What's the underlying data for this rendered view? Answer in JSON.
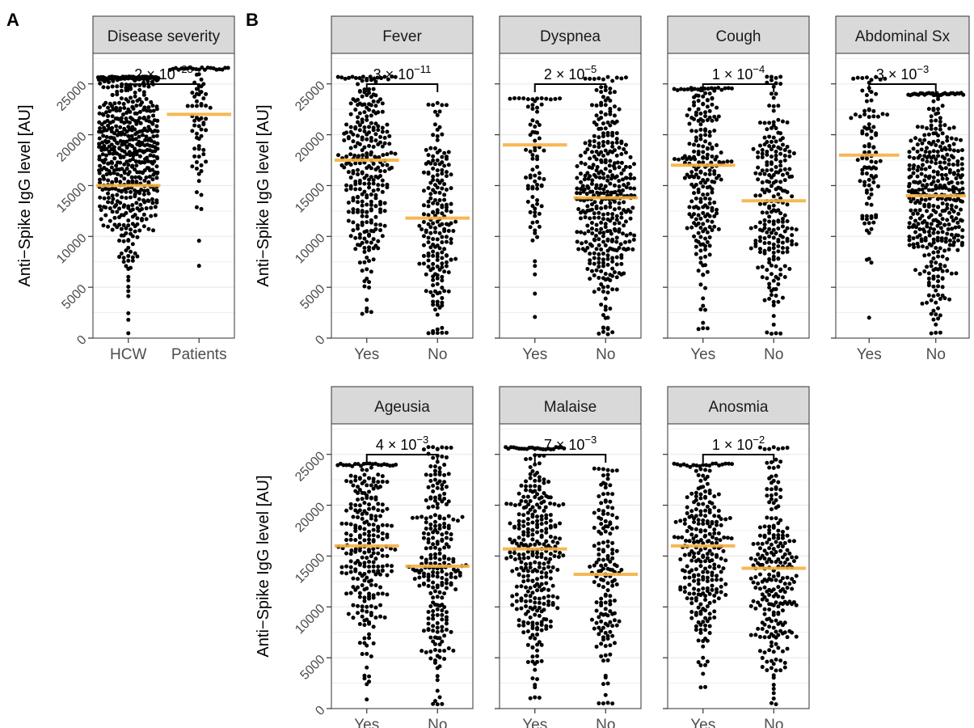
{
  "figure": {
    "panel_labels": [
      "A",
      "B"
    ],
    "y_axis_label": "Anti−Spike IgG level [AU]"
  },
  "colors": {
    "points": "#000000",
    "median_line": "#f5b041",
    "strip_fill": "#d9d9d9",
    "strip_border": "#333333",
    "gridline": "#ebebeb",
    "axis_text": "#4d4d4d",
    "significance_bar": "#000000"
  },
  "chart_data": [
    {
      "type": "scatter",
      "subtype": "beeswarm",
      "title": "Disease severity",
      "panel": "A",
      "categories": [
        "HCW",
        "Patients"
      ],
      "ylabel": "Anti−Spike IgG level [AU]",
      "y_ticks": [
        0,
        5000,
        10000,
        15000,
        20000,
        25000
      ],
      "ylim": [
        0,
        28000
      ],
      "grid": true,
      "p_value": {
        "mantissa": "2",
        "exponent": "−23"
      },
      "groups": [
        {
          "name": "HCW",
          "median": 15000,
          "n": 600,
          "min": 500,
          "max": 25600,
          "peak": 19000
        },
        {
          "name": "Patients",
          "median": 22000,
          "n": 80,
          "min": 7000,
          "max": 26500,
          "peak": 22000
        }
      ]
    },
    {
      "type": "scatter",
      "subtype": "beeswarm",
      "title": "Fever",
      "panel": "B",
      "categories": [
        "Yes",
        "No"
      ],
      "ylim": [
        0,
        28000
      ],
      "y_ticks": [
        0,
        5000,
        10000,
        15000,
        20000,
        25000
      ],
      "p_value": {
        "mantissa": "3",
        "exponent": "−11"
      },
      "groups": [
        {
          "name": "Yes",
          "median": 17500,
          "n": 300,
          "min": 2500,
          "max": 25600,
          "peak": 17000
        },
        {
          "name": "No",
          "median": 11800,
          "n": 200,
          "min": 500,
          "max": 23000,
          "peak": 11500
        }
      ]
    },
    {
      "type": "scatter",
      "subtype": "beeswarm",
      "title": "Dyspnea",
      "panel": "B",
      "categories": [
        "Yes",
        "No"
      ],
      "ylim": [
        0,
        28000
      ],
      "y_ticks": [
        0,
        5000,
        10000,
        15000,
        20000,
        25000
      ],
      "p_value": {
        "mantissa": "2",
        "exponent": "−5"
      },
      "groups": [
        {
          "name": "Yes",
          "median": 19000,
          "n": 80,
          "min": 2000,
          "max": 23500,
          "peak": 17500
        },
        {
          "name": "No",
          "median": 13800,
          "n": 400,
          "min": 500,
          "max": 25600,
          "peak": 14000
        }
      ]
    },
    {
      "type": "scatter",
      "subtype": "beeswarm",
      "title": "Cough",
      "panel": "B",
      "categories": [
        "Yes",
        "No"
      ],
      "ylim": [
        0,
        28000
      ],
      "y_ticks": [
        0,
        5000,
        10000,
        15000,
        20000,
        25000
      ],
      "p_value": {
        "mantissa": "1",
        "exponent": "−4"
      },
      "groups": [
        {
          "name": "Yes",
          "median": 17000,
          "n": 240,
          "min": 1000,
          "max": 24500,
          "peak": 16500
        },
        {
          "name": "No",
          "median": 13500,
          "n": 240,
          "min": 500,
          "max": 25600,
          "peak": 13500
        }
      ]
    },
    {
      "type": "scatter",
      "subtype": "beeswarm",
      "title": "Abdominal Sx",
      "panel": "B",
      "categories": [
        "Yes",
        "No"
      ],
      "ylim": [
        0,
        28000
      ],
      "y_ticks": [
        0,
        5000,
        10000,
        15000,
        20000,
        25000
      ],
      "p_value": {
        "mantissa": "3",
        "exponent": "−3"
      },
      "groups": [
        {
          "name": "Yes",
          "median": 18000,
          "n": 100,
          "min": 2000,
          "max": 25600,
          "peak": 17500
        },
        {
          "name": "No",
          "median": 14000,
          "n": 420,
          "min": 500,
          "max": 24000,
          "peak": 14000
        }
      ]
    },
    {
      "type": "scatter",
      "subtype": "beeswarm",
      "title": "Ageusia",
      "panel": "B",
      "categories": [
        "Yes",
        "No"
      ],
      "ylim": [
        0,
        28000
      ],
      "y_ticks": [
        0,
        5000,
        10000,
        15000,
        20000,
        25000
      ],
      "p_value": {
        "mantissa": "4",
        "exponent": "−3"
      },
      "groups": [
        {
          "name": "Yes",
          "median": 16000,
          "n": 270,
          "min": 1000,
          "max": 24000,
          "peak": 15500
        },
        {
          "name": "No",
          "median": 14000,
          "n": 250,
          "min": 500,
          "max": 25600,
          "peak": 14000
        }
      ]
    },
    {
      "type": "scatter",
      "subtype": "beeswarm",
      "title": "Malaise",
      "panel": "B",
      "categories": [
        "Yes",
        "No"
      ],
      "ylim": [
        0,
        28000
      ],
      "y_ticks": [
        0,
        5000,
        10000,
        15000,
        20000,
        25000
      ],
      "p_value": {
        "mantissa": "7",
        "exponent": "−3"
      },
      "groups": [
        {
          "name": "Yes",
          "median": 15700,
          "n": 330,
          "min": 1000,
          "max": 25600,
          "peak": 15500
        },
        {
          "name": "No",
          "median": 13200,
          "n": 160,
          "min": 500,
          "max": 23500,
          "peak": 13000
        }
      ]
    },
    {
      "type": "scatter",
      "subtype": "beeswarm",
      "title": "Anosmia",
      "panel": "B",
      "categories": [
        "Yes",
        "No"
      ],
      "ylim": [
        0,
        28000
      ],
      "y_ticks": [
        0,
        5000,
        10000,
        15000,
        20000,
        25000
      ],
      "p_value": {
        "mantissa": "1",
        "exponent": "−2"
      },
      "groups": [
        {
          "name": "Yes",
          "median": 16000,
          "n": 270,
          "min": 2000,
          "max": 24000,
          "peak": 15500
        },
        {
          "name": "No",
          "median": 13800,
          "n": 250,
          "min": 500,
          "max": 25600,
          "peak": 13500
        }
      ]
    }
  ]
}
